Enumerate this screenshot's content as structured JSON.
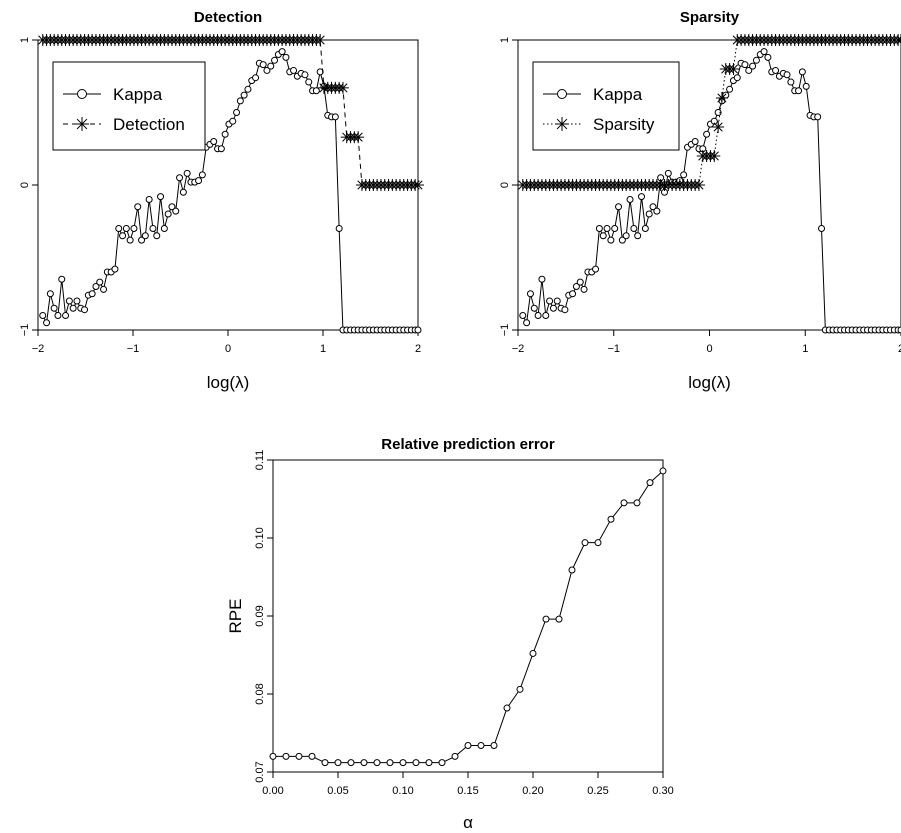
{
  "chart_data": [
    {
      "type": "line",
      "title": "Detection",
      "xlabel": "log(λ)",
      "ylabel": "",
      "xlim": [
        -2,
        2
      ],
      "ylim": [
        -1,
        1
      ],
      "xticks": [
        "−2",
        "−1",
        "0",
        "1",
        "2"
      ],
      "yticks": [
        "−1",
        "0",
        "1"
      ],
      "legend": {
        "position": "top-left",
        "entries": [
          "Kappa",
          "Detection"
        ]
      },
      "series": [
        {
          "name": "Kappa",
          "marker": "circle",
          "line": "solid",
          "x": [
            -1.95,
            -1.91,
            -1.87,
            -1.83,
            -1.79,
            -1.75,
            -1.71,
            -1.67,
            -1.63,
            -1.59,
            -1.55,
            -1.51,
            -1.47,
            -1.43,
            -1.39,
            -1.35,
            -1.31,
            -1.27,
            -1.23,
            -1.19,
            -1.15,
            -1.11,
            -1.07,
            -1.03,
            -0.99,
            -0.95,
            -0.91,
            -0.87,
            -0.83,
            -0.79,
            -0.75,
            -0.71,
            -0.67,
            -0.63,
            -0.59,
            -0.55,
            -0.51,
            -0.47,
            -0.43,
            -0.39,
            -0.35,
            -0.31,
            -0.27,
            -0.23,
            -0.19,
            -0.15,
            -0.11,
            -0.07,
            -0.03,
            0.01,
            0.05,
            0.09,
            0.13,
            0.17,
            0.21,
            0.25,
            0.29,
            0.33,
            0.37,
            0.41,
            0.45,
            0.49,
            0.53,
            0.57,
            0.61,
            0.65,
            0.69,
            0.73,
            0.77,
            0.81,
            0.85,
            0.89,
            0.93,
            0.97,
            1.01,
            1.05,
            1.09,
            1.13,
            1.17,
            1.21,
            1.25,
            1.29,
            1.33,
            1.37,
            1.41,
            1.45,
            1.49,
            1.53,
            1.57,
            1.61,
            1.65,
            1.69,
            1.73,
            1.77,
            1.81,
            1.85,
            1.89,
            1.93,
            1.97,
            2.0
          ],
          "y": [
            -0.9,
            -0.95,
            -0.75,
            -0.85,
            -0.9,
            -0.65,
            -0.9,
            -0.8,
            -0.85,
            -0.8,
            -0.85,
            -0.86,
            -0.76,
            -0.75,
            -0.7,
            -0.67,
            -0.72,
            -0.6,
            -0.6,
            -0.58,
            -0.3,
            -0.35,
            -0.3,
            -0.38,
            -0.3,
            -0.15,
            -0.38,
            -0.35,
            -0.1,
            -0.3,
            -0.35,
            -0.08,
            -0.3,
            -0.2,
            -0.15,
            -0.18,
            0.05,
            -0.05,
            0.08,
            0.02,
            0.02,
            0.03,
            0.07,
            0.26,
            0.28,
            0.3,
            0.25,
            0.25,
            0.35,
            0.42,
            0.44,
            0.5,
            0.58,
            0.62,
            0.66,
            0.72,
            0.74,
            0.84,
            0.83,
            0.79,
            0.82,
            0.86,
            0.9,
            0.92,
            0.88,
            0.78,
            0.79,
            0.75,
            0.77,
            0.76,
            0.71,
            0.65,
            0.65,
            0.78,
            0.68,
            0.48,
            0.47,
            0.47,
            -0.3,
            -1,
            -1,
            -1,
            -1,
            -1,
            -1,
            -1,
            -1,
            -1,
            -1,
            -1,
            -1,
            -1,
            -1,
            -1,
            -1,
            -1,
            -1,
            -1,
            -1,
            -1
          ]
        },
        {
          "name": "Detection",
          "marker": "asterisk",
          "line": "dashed",
          "x": [
            -1.95,
            -1.91,
            -1.87,
            -1.83,
            -1.79,
            -1.75,
            -1.71,
            -1.67,
            -1.63,
            -1.59,
            -1.55,
            -1.51,
            -1.47,
            -1.43,
            -1.39,
            -1.35,
            -1.31,
            -1.27,
            -1.23,
            -1.19,
            -1.15,
            -1.11,
            -1.07,
            -1.03,
            -0.99,
            -0.95,
            -0.91,
            -0.87,
            -0.83,
            -0.79,
            -0.75,
            -0.71,
            -0.67,
            -0.63,
            -0.59,
            -0.55,
            -0.51,
            -0.47,
            -0.43,
            -0.39,
            -0.35,
            -0.31,
            -0.27,
            -0.23,
            -0.19,
            -0.15,
            -0.11,
            -0.07,
            -0.03,
            0.01,
            0.05,
            0.09,
            0.13,
            0.17,
            0.21,
            0.25,
            0.29,
            0.33,
            0.37,
            0.41,
            0.45,
            0.49,
            0.53,
            0.57,
            0.61,
            0.65,
            0.69,
            0.73,
            0.77,
            0.81,
            0.85,
            0.89,
            0.93,
            0.97,
            1.01,
            1.05,
            1.09,
            1.13,
            1.17,
            1.21,
            1.25,
            1.29,
            1.33,
            1.37,
            1.41,
            1.45,
            1.49,
            1.53,
            1.57,
            1.61,
            1.65,
            1.69,
            1.73,
            1.77,
            1.81,
            1.85,
            1.89,
            1.93,
            1.97,
            2.0
          ],
          "y": [
            1,
            1,
            1,
            1,
            1,
            1,
            1,
            1,
            1,
            1,
            1,
            1,
            1,
            1,
            1,
            1,
            1,
            1,
            1,
            1,
            1,
            1,
            1,
            1,
            1,
            1,
            1,
            1,
            1,
            1,
            1,
            1,
            1,
            1,
            1,
            1,
            1,
            1,
            1,
            1,
            1,
            1,
            1,
            1,
            1,
            1,
            1,
            1,
            1,
            1,
            1,
            1,
            1,
            1,
            1,
            1,
            1,
            1,
            1,
            1,
            1,
            1,
            1,
            1,
            1,
            1,
            1,
            1,
            1,
            1,
            1,
            1,
            1,
            1,
            0.67,
            0.67,
            0.67,
            0.67,
            0.67,
            0.67,
            0.33,
            0.33,
            0.33,
            0.33,
            0,
            0,
            0,
            0,
            0,
            0,
            0,
            0,
            0,
            0,
            0,
            0,
            0,
            0,
            0,
            0
          ]
        }
      ]
    },
    {
      "type": "line",
      "title": "Sparsity",
      "xlabel": "log(λ)",
      "ylabel": "",
      "xlim": [
        -2,
        2
      ],
      "ylim": [
        -1,
        1
      ],
      "xticks": [
        "−2",
        "−1",
        "0",
        "1",
        "2"
      ],
      "yticks": [
        "−1",
        "0",
        "1"
      ],
      "legend": {
        "position": "top-left",
        "entries": [
          "Kappa",
          "Sparsity"
        ]
      },
      "series": [
        {
          "name": "Kappa",
          "marker": "circle",
          "line": "solid",
          "x": [
            -1.95,
            -1.91,
            -1.87,
            -1.83,
            -1.79,
            -1.75,
            -1.71,
            -1.67,
            -1.63,
            -1.59,
            -1.55,
            -1.51,
            -1.47,
            -1.43,
            -1.39,
            -1.35,
            -1.31,
            -1.27,
            -1.23,
            -1.19,
            -1.15,
            -1.11,
            -1.07,
            -1.03,
            -0.99,
            -0.95,
            -0.91,
            -0.87,
            -0.83,
            -0.79,
            -0.75,
            -0.71,
            -0.67,
            -0.63,
            -0.59,
            -0.55,
            -0.51,
            -0.47,
            -0.43,
            -0.39,
            -0.35,
            -0.31,
            -0.27,
            -0.23,
            -0.19,
            -0.15,
            -0.11,
            -0.07,
            -0.03,
            0.01,
            0.05,
            0.09,
            0.13,
            0.17,
            0.21,
            0.25,
            0.29,
            0.33,
            0.37,
            0.41,
            0.45,
            0.49,
            0.53,
            0.57,
            0.61,
            0.65,
            0.69,
            0.73,
            0.77,
            0.81,
            0.85,
            0.89,
            0.93,
            0.97,
            1.01,
            1.05,
            1.09,
            1.13,
            1.17,
            1.21,
            1.25,
            1.29,
            1.33,
            1.37,
            1.41,
            1.45,
            1.49,
            1.53,
            1.57,
            1.61,
            1.65,
            1.69,
            1.73,
            1.77,
            1.81,
            1.85,
            1.89,
            1.93,
            1.97,
            2.0
          ],
          "y": [
            -0.9,
            -0.95,
            -0.75,
            -0.85,
            -0.9,
            -0.65,
            -0.9,
            -0.8,
            -0.85,
            -0.8,
            -0.85,
            -0.86,
            -0.76,
            -0.75,
            -0.7,
            -0.67,
            -0.72,
            -0.6,
            -0.6,
            -0.58,
            -0.3,
            -0.35,
            -0.3,
            -0.38,
            -0.3,
            -0.15,
            -0.38,
            -0.35,
            -0.1,
            -0.3,
            -0.35,
            -0.08,
            -0.3,
            -0.2,
            -0.15,
            -0.18,
            0.05,
            -0.05,
            0.08,
            0.02,
            0.02,
            0.03,
            0.07,
            0.26,
            0.28,
            0.3,
            0.25,
            0.25,
            0.35,
            0.42,
            0.44,
            0.5,
            0.58,
            0.62,
            0.66,
            0.72,
            0.74,
            0.84,
            0.83,
            0.79,
            0.82,
            0.86,
            0.9,
            0.92,
            0.88,
            0.78,
            0.79,
            0.75,
            0.77,
            0.76,
            0.71,
            0.65,
            0.65,
            0.78,
            0.68,
            0.48,
            0.47,
            0.47,
            -0.3,
            -1,
            -1,
            -1,
            -1,
            -1,
            -1,
            -1,
            -1,
            -1,
            -1,
            -1,
            -1,
            -1,
            -1,
            -1,
            -1,
            -1,
            -1,
            -1,
            -1,
            -1
          ]
        },
        {
          "name": "Sparsity",
          "marker": "asterisk",
          "line": "dotted",
          "x": [
            -1.95,
            -1.91,
            -1.87,
            -1.83,
            -1.79,
            -1.75,
            -1.71,
            -1.67,
            -1.63,
            -1.59,
            -1.55,
            -1.51,
            -1.47,
            -1.43,
            -1.39,
            -1.35,
            -1.31,
            -1.27,
            -1.23,
            -1.19,
            -1.15,
            -1.11,
            -1.07,
            -1.03,
            -0.99,
            -0.95,
            -0.91,
            -0.87,
            -0.83,
            -0.79,
            -0.75,
            -0.71,
            -0.67,
            -0.63,
            -0.59,
            -0.55,
            -0.51,
            -0.47,
            -0.43,
            -0.39,
            -0.35,
            -0.31,
            -0.27,
            -0.23,
            -0.19,
            -0.15,
            -0.11,
            -0.07,
            -0.03,
            0.01,
            0.05,
            0.09,
            0.13,
            0.17,
            0.21,
            0.25,
            0.29,
            0.33,
            0.37,
            0.41,
            0.45,
            0.49,
            0.53,
            0.57,
            0.61,
            0.65,
            0.69,
            0.73,
            0.77,
            0.81,
            0.85,
            0.89,
            0.93,
            0.97,
            1.01,
            1.05,
            1.09,
            1.13,
            1.17,
            1.21,
            1.25,
            1.29,
            1.33,
            1.37,
            1.41,
            1.45,
            1.49,
            1.53,
            1.57,
            1.61,
            1.65,
            1.69,
            1.73,
            1.77,
            1.81,
            1.85,
            1.89,
            1.93,
            1.97,
            2.0
          ],
          "y": [
            0,
            0,
            0,
            0,
            0,
            0,
            0,
            0,
            0,
            0,
            0,
            0,
            0,
            0,
            0,
            0,
            0,
            0,
            0,
            0,
            0,
            0,
            0,
            0,
            0,
            0,
            0,
            0,
            0,
            0,
            0,
            0,
            0,
            0,
            0,
            0,
            0,
            0,
            0,
            0,
            0,
            0,
            0,
            0,
            0,
            0,
            0,
            0.2,
            0.2,
            0.2,
            0.2,
            0.4,
            0.6,
            0.8,
            0.8,
            0.8,
            1,
            1,
            1,
            1,
            1,
            1,
            1,
            1,
            1,
            1,
            1,
            1,
            1,
            1,
            1,
            1,
            1,
            1,
            1,
            1,
            1,
            1,
            1,
            1,
            1,
            1,
            1,
            1,
            1,
            1,
            1,
            1,
            1,
            1,
            1,
            1,
            1,
            1,
            1,
            1,
            1,
            1,
            1,
            1
          ]
        }
      ]
    },
    {
      "type": "line",
      "title": "Relative prediction error",
      "xlabel": "α",
      "ylabel": "RPE",
      "xlim": [
        0,
        0.3
      ],
      "ylim": [
        0.07,
        0.11
      ],
      "xticks": [
        "0.00",
        "0.05",
        "0.10",
        "0.15",
        "0.20",
        "0.25",
        "0.30"
      ],
      "yticks": [
        "0.07",
        "0.08",
        "0.09",
        "0.10",
        "0.11"
      ],
      "series": [
        {
          "marker": "circle",
          "line": "solid",
          "x": [
            0.0,
            0.01,
            0.02,
            0.03,
            0.04,
            0.05,
            0.06,
            0.07,
            0.08,
            0.09,
            0.1,
            0.11,
            0.12,
            0.13,
            0.14,
            0.15,
            0.16,
            0.17,
            0.18,
            0.19,
            0.2,
            0.21,
            0.22,
            0.23,
            0.24,
            0.25,
            0.26,
            0.27,
            0.28,
            0.29,
            0.3
          ],
          "y": [
            0.072,
            0.072,
            0.072,
            0.072,
            0.0712,
            0.0712,
            0.0712,
            0.0712,
            0.0712,
            0.0712,
            0.0712,
            0.0712,
            0.0712,
            0.0712,
            0.072,
            0.0734,
            0.0734,
            0.0734,
            0.0782,
            0.0806,
            0.0852,
            0.0896,
            0.0896,
            0.0959,
            0.0994,
            0.0994,
            0.1024,
            0.1045,
            0.1045,
            0.1071,
            0.1086
          ]
        }
      ]
    }
  ]
}
